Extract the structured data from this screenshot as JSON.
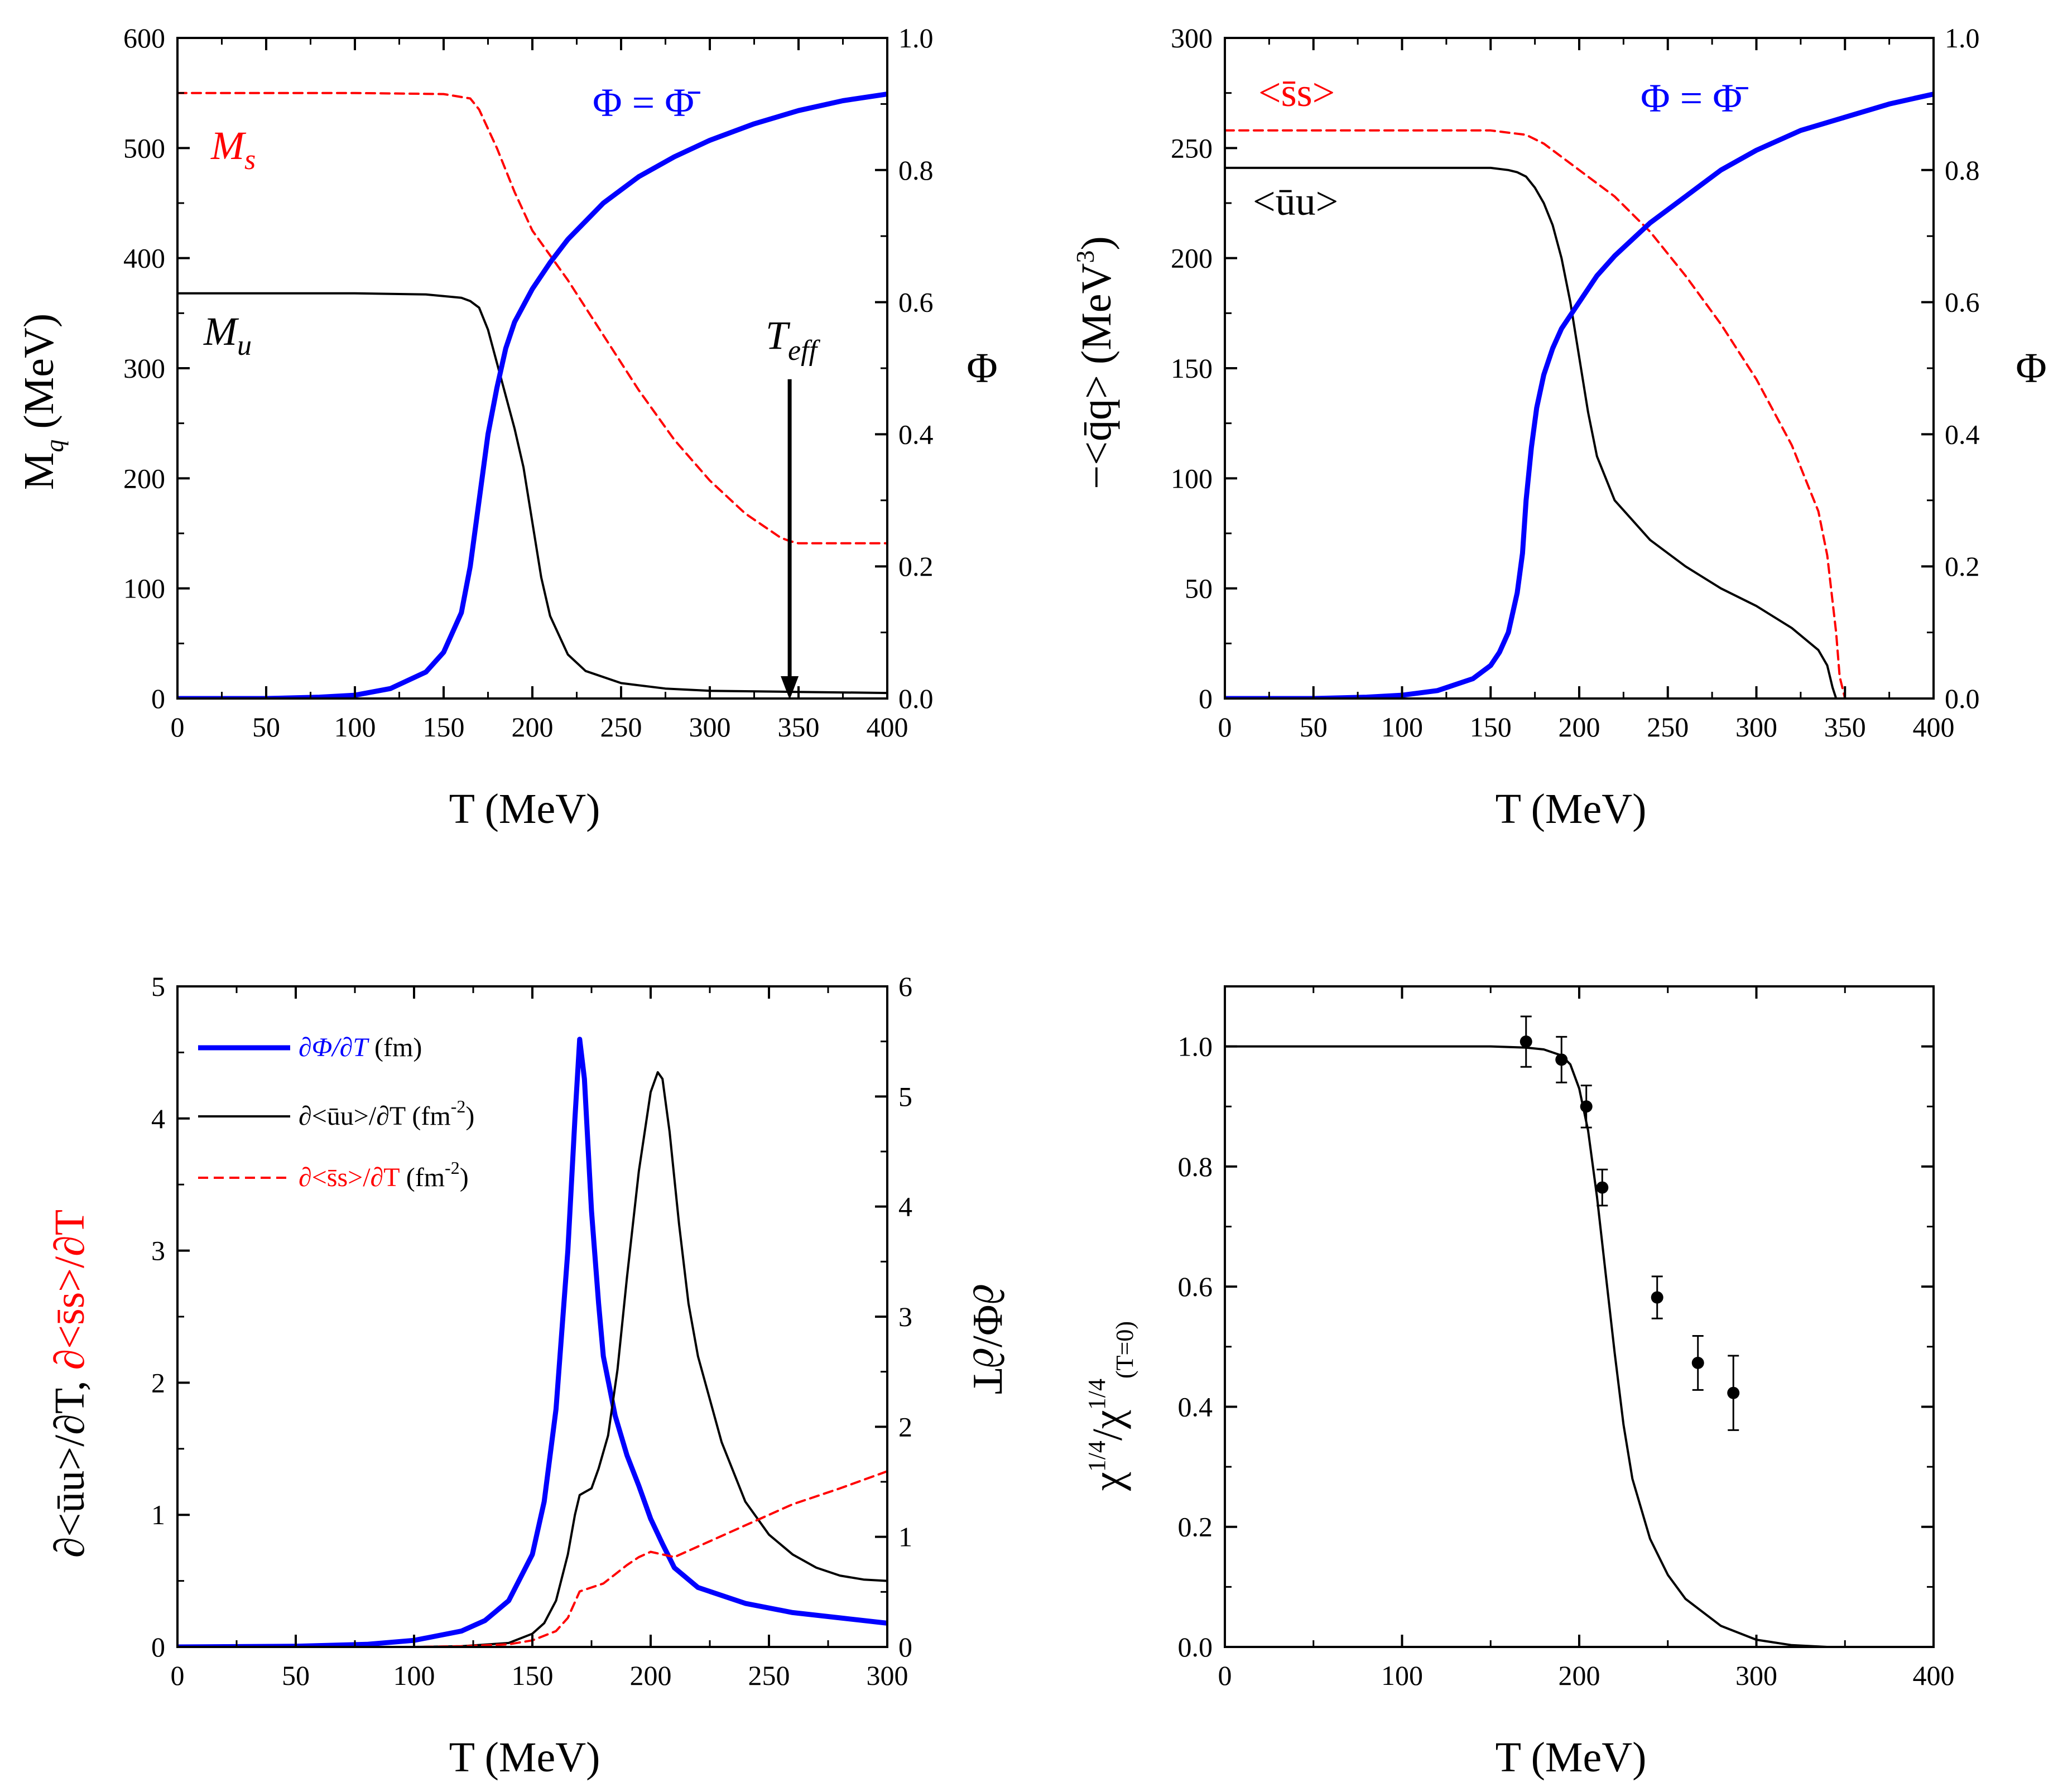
{
  "colors": {
    "black": "#000000",
    "blue": "#0000ff",
    "red": "#ff0000"
  },
  "chart_data": [
    {
      "type": "line",
      "panel": "top-left",
      "xlabel": "T (MeV)",
      "ylabel": "M_q (MeV)",
      "ylabel_parts": {
        "main": "M",
        "sub": "q",
        "rest": " (MeV)"
      },
      "y2label": "Φ",
      "xlim": [
        0,
        400
      ],
      "ylim": [
        0,
        600
      ],
      "y2lim": [
        0,
        1.0
      ],
      "xticks": [
        "0",
        "50",
        "100",
        "150",
        "200",
        "250",
        "300",
        "350",
        "400"
      ],
      "yticks": [
        "0",
        "100",
        "200",
        "300",
        "400",
        "500",
        "600"
      ],
      "y2ticks": [
        "0.0",
        "0.2",
        "0.4",
        "0.6",
        "0.8",
        "1.0"
      ],
      "annotations": {
        "ms": {
          "main": "M",
          "sub": "s"
        },
        "mu": {
          "main": "M",
          "sub": "u"
        },
        "teff": {
          "main": "T",
          "sub": "eff"
        },
        "phi_eq": "Φ = Φ̄"
      },
      "series": [
        {
          "name": "M_u",
          "axis": "left",
          "color": "#000000",
          "style": "solid",
          "x": [
            0,
            50,
            100,
            140,
            160,
            165,
            170,
            175,
            180,
            185,
            190,
            195,
            200,
            205,
            210,
            220,
            230,
            250,
            275,
            300,
            350,
            400
          ],
          "y": [
            368,
            368,
            368,
            367,
            364,
            361,
            355,
            335,
            305,
            275,
            245,
            210,
            160,
            110,
            75,
            40,
            25,
            14,
            9,
            7,
            6,
            5
          ]
        },
        {
          "name": "M_s",
          "axis": "left",
          "color": "#ff0000",
          "style": "dashed",
          "x": [
            0,
            50,
            100,
            150,
            165,
            170,
            180,
            190,
            200,
            220,
            240,
            260,
            280,
            300,
            320,
            340,
            345,
            350,
            400
          ],
          "y": [
            550,
            550,
            550,
            549,
            545,
            535,
            500,
            460,
            425,
            380,
            330,
            280,
            235,
            198,
            168,
            146,
            143,
            141,
            141
          ]
        },
        {
          "name": "Phi",
          "axis": "right",
          "color": "#0000ff",
          "style": "solid",
          "x": [
            0,
            50,
            80,
            100,
            120,
            140,
            150,
            160,
            165,
            170,
            175,
            180,
            185,
            190,
            200,
            210,
            220,
            240,
            260,
            280,
            300,
            325,
            350,
            375,
            400
          ],
          "y": [
            0,
            0.0,
            0.002,
            0.005,
            0.015,
            0.04,
            0.07,
            0.13,
            0.2,
            0.3,
            0.4,
            0.47,
            0.53,
            0.57,
            0.62,
            0.66,
            0.695,
            0.75,
            0.79,
            0.82,
            0.845,
            0.87,
            0.89,
            0.905,
            0.915
          ]
        }
      ],
      "arrow": {
        "x": 345,
        "from_y": 290,
        "to_y": 0
      }
    },
    {
      "type": "line",
      "panel": "top-right",
      "xlabel": "T (MeV)",
      "ylabel": "-<q̄q> (MeV^3)",
      "ylabel_parts": {
        "main": "−<q̄q> (MeV",
        "sup": "3",
        "rest": ")"
      },
      "y2label": "Φ",
      "xlim": [
        0,
        400
      ],
      "ylim": [
        0,
        300
      ],
      "y2lim": [
        0,
        1.0
      ],
      "xticks": [
        "0",
        "50",
        "100",
        "150",
        "200",
        "250",
        "300",
        "350",
        "400"
      ],
      "yticks": [
        "0",
        "50",
        "100",
        "150",
        "200",
        "250",
        "300"
      ],
      "y2ticks": [
        "0.0",
        "0.2",
        "0.4",
        "0.6",
        "0.8",
        "1.0"
      ],
      "annotations": {
        "ss": "<s̄s>",
        "uu": "<ūu>",
        "phi_eq": "Φ = Φ̄"
      },
      "series": [
        {
          "name": "<ūu>",
          "axis": "left",
          "color": "#000000",
          "style": "solid",
          "x": [
            0,
            50,
            100,
            150,
            160,
            165,
            170,
            175,
            180,
            185,
            190,
            195,
            200,
            205,
            210,
            220,
            240,
            260,
            280,
            300,
            320,
            335,
            340,
            343,
            345
          ],
          "y": [
            241,
            241,
            241,
            241,
            240,
            239,
            237,
            232,
            225,
            215,
            200,
            180,
            155,
            130,
            110,
            90,
            72,
            60,
            50,
            42,
            32,
            22,
            15,
            5,
            0
          ]
        },
        {
          "name": "<s̄s>",
          "axis": "left",
          "color": "#ff0000",
          "style": "dashed",
          "x": [
            0,
            50,
            100,
            150,
            170,
            180,
            190,
            200,
            220,
            240,
            260,
            280,
            300,
            320,
            335,
            340,
            345,
            347,
            350,
            400
          ],
          "y": [
            258,
            258,
            258,
            258,
            256,
            252,
            246,
            240,
            228,
            212,
            192,
            170,
            145,
            115,
            85,
            65,
            30,
            10,
            0,
            0
          ]
        },
        {
          "name": "Phi",
          "axis": "right",
          "color": "#0000ff",
          "style": "solid",
          "x": [
            0,
            50,
            80,
            100,
            120,
            140,
            150,
            155,
            160,
            165,
            168,
            170,
            173,
            176,
            180,
            185,
            190,
            200,
            210,
            220,
            240,
            260,
            280,
            300,
            325,
            350,
            375,
            400
          ],
          "y": [
            0,
            0.0,
            0.002,
            0.005,
            0.012,
            0.03,
            0.05,
            0.07,
            0.1,
            0.16,
            0.22,
            0.3,
            0.38,
            0.44,
            0.49,
            0.53,
            0.56,
            0.6,
            0.64,
            0.67,
            0.72,
            0.76,
            0.8,
            0.83,
            0.86,
            0.88,
            0.9,
            0.915
          ]
        }
      ]
    },
    {
      "type": "line",
      "panel": "bottom-left",
      "xlabel": "T (MeV)",
      "ylabel": "∂<ūu>/∂T, ∂<s̄s>/∂T",
      "ylabel_parts": {
        "black": "∂<ūu>/∂T, ",
        "red": "∂<s̄s>/∂T"
      },
      "y2label": "∂Φ/∂T",
      "xlim": [
        0,
        300
      ],
      "ylim": [
        0,
        5
      ],
      "y2lim": [
        0,
        6
      ],
      "xticks": [
        "0",
        "50",
        "100",
        "150",
        "200",
        "250",
        "300"
      ],
      "yticks": [
        "0",
        "1",
        "2",
        "3",
        "4",
        "5"
      ],
      "y2ticks": [
        "0",
        "1",
        "2",
        "3",
        "4",
        "5",
        "6"
      ],
      "legend": [
        {
          "label": "∂Φ/∂T",
          "unit": " (fm)",
          "sup": "",
          "tail": "",
          "color": "#0000ff",
          "style": "solid-thick"
        },
        {
          "label": "∂<ūu>/∂T",
          "unit": " (fm",
          "sup": "-2",
          "tail": ")",
          "color": "#000000",
          "style": "solid"
        },
        {
          "label": "∂<s̄s>/∂T",
          "unit": " (fm",
          "sup": "-2",
          "tail": ")",
          "color": "#ff0000",
          "style": "dashed"
        }
      ],
      "series": [
        {
          "name": "∂Φ/∂T",
          "axis": "left",
          "color": "#0000ff",
          "style": "solid",
          "x": [
            0,
            50,
            80,
            100,
            120,
            130,
            140,
            150,
            155,
            160,
            165,
            168,
            170,
            172,
            175,
            178,
            180,
            185,
            190,
            195,
            200,
            205,
            210,
            220,
            240,
            260,
            280,
            300
          ],
          "y": [
            0,
            0.005,
            0.02,
            0.05,
            0.12,
            0.2,
            0.35,
            0.7,
            1.1,
            1.8,
            3.0,
            4.0,
            4.6,
            4.3,
            3.3,
            2.6,
            2.2,
            1.75,
            1.45,
            1.22,
            0.97,
            0.78,
            0.6,
            0.45,
            0.33,
            0.26,
            0.22,
            0.18
          ]
        },
        {
          "name": "∂<ūu>/∂T",
          "axis": "left",
          "color": "#000000",
          "style": "solid",
          "x": [
            0,
            100,
            120,
            140,
            150,
            155,
            160,
            165,
            168,
            170,
            172,
            175,
            178,
            182,
            186,
            190,
            195,
            200,
            203,
            205,
            208,
            212,
            216,
            220,
            230,
            240,
            250,
            260,
            270,
            280,
            290,
            300
          ],
          "y": [
            0,
            0.0,
            0.005,
            0.03,
            0.1,
            0.18,
            0.35,
            0.7,
            1.0,
            1.15,
            1.17,
            1.2,
            1.35,
            1.6,
            2.1,
            2.8,
            3.6,
            4.2,
            4.35,
            4.3,
            3.9,
            3.2,
            2.6,
            2.2,
            1.55,
            1.1,
            0.85,
            0.7,
            0.6,
            0.54,
            0.51,
            0.5
          ]
        },
        {
          "name": "∂<s̄s>/∂T",
          "axis": "left",
          "color": "#ff0000",
          "style": "dashed",
          "x": [
            0,
            100,
            120,
            140,
            150,
            160,
            165,
            170,
            175,
            180,
            185,
            190,
            195,
            200,
            205,
            210,
            220,
            240,
            260,
            280,
            300
          ],
          "y": [
            0,
            0.0,
            0.005,
            0.02,
            0.05,
            0.12,
            0.22,
            0.42,
            0.45,
            0.48,
            0.55,
            0.62,
            0.68,
            0.72,
            0.7,
            0.68,
            0.76,
            0.92,
            1.08,
            1.2,
            1.33
          ]
        }
      ]
    },
    {
      "type": "line",
      "panel": "bottom-right",
      "xlabel": "T (MeV)",
      "ylabel": "χ^1/4 / χ^1/4(T=0)",
      "ylabel_parts": {
        "chi": "χ",
        "sup1": "1/4",
        "slash": "/χ",
        "sup2": "1/4",
        "sub": "(T=0)"
      },
      "xlim": [
        0,
        400
      ],
      "ylim": [
        0,
        1.1
      ],
      "xticks": [
        "0",
        "100",
        "200",
        "300",
        "400"
      ],
      "yticks": [
        "0.0",
        "0.2",
        "0.4",
        "0.6",
        "0.8",
        "1.0"
      ],
      "series": [
        {
          "name": "model",
          "color": "#000000",
          "style": "solid",
          "x": [
            0,
            100,
            150,
            170,
            180,
            190,
            195,
            200,
            205,
            210,
            215,
            220,
            225,
            230,
            240,
            250,
            260,
            280,
            300,
            320,
            340,
            350
          ],
          "y": [
            1.0,
            1.0,
            1.0,
            0.998,
            0.995,
            0.985,
            0.97,
            0.93,
            0.86,
            0.75,
            0.62,
            0.49,
            0.37,
            0.28,
            0.18,
            0.12,
            0.08,
            0.035,
            0.012,
            0.003,
            0.0,
            0.0
          ]
        }
      ],
      "points": {
        "x": [
          170,
          190,
          204,
          213,
          244,
          267,
          287
        ],
        "y": [
          1.008,
          0.978,
          0.9,
          0.765,
          0.582,
          0.473,
          0.423
        ],
        "err": [
          0.042,
          0.038,
          0.035,
          0.03,
          0.035,
          0.045,
          0.062
        ]
      }
    }
  ]
}
